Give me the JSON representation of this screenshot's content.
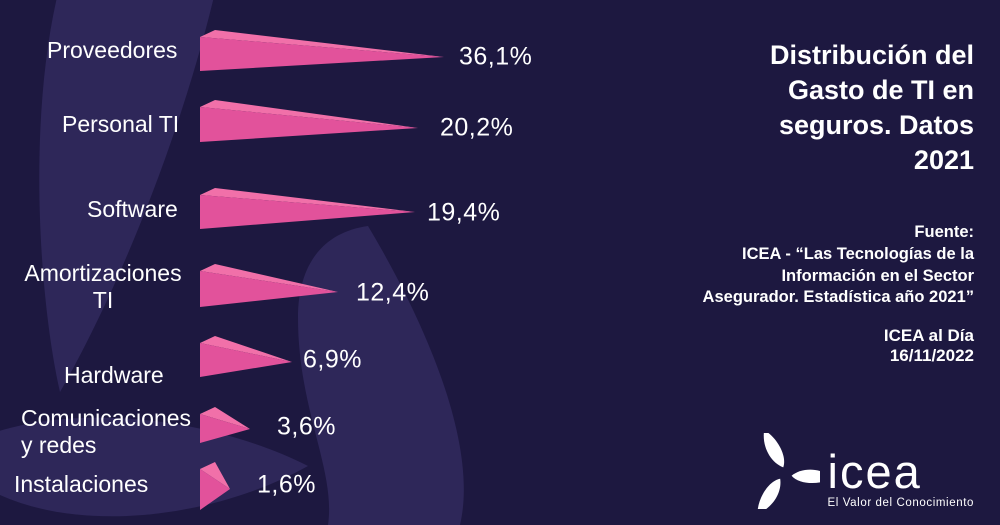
{
  "chart_data": {
    "type": "bar",
    "orientation": "horizontal",
    "title": "Distribución del Gasto de TI en seguros. Datos 2021",
    "categories": [
      "Proveedores",
      "Personal TI",
      "Software",
      "Amortizaciones TI",
      "Hardware",
      "Comunicaciones y redes",
      "Instalaciones"
    ],
    "values": [
      36.1,
      20.2,
      19.4,
      12.4,
      6.9,
      3.6,
      1.6
    ],
    "value_labels": [
      "36,1%",
      "20,2%",
      "19,4%",
      "12,4%",
      "6,9%",
      "3,6%",
      "1,6%"
    ],
    "unit": "%",
    "legend": "none",
    "grid": "off"
  },
  "rows": [
    {
      "label": "Proveedores",
      "value_label": "36,1%"
    },
    {
      "label": "Personal TI",
      "value_label": "20,2%"
    },
    {
      "label": "Software",
      "value_label": "19,4%"
    },
    {
      "label": "Amortizaciones\nTI",
      "value_label": "12,4%"
    },
    {
      "label": "Hardware",
      "value_label": "6,9%"
    },
    {
      "label": "Comunicaciones\ny redes",
      "value_label": "3,6%"
    },
    {
      "label": "Instalaciones",
      "value_label": "1,6%"
    }
  ],
  "panel": {
    "title": "Distribución del\nGasto de TI en\nseguros. Datos\n2021",
    "source_label": "Fuente:",
    "source": "ICEA - “Las Tecnologías de la\nInformación en el Sector\nAsegurador. Estadística año 2021”",
    "publication": "ICEA al Día",
    "date": "16/11/2022",
    "logo": {
      "text": "icea",
      "tagline": "El Valor del Conocimiento"
    }
  },
  "colors": {
    "background": "#1d1840",
    "watermark": "#2e2759",
    "bar": "#e2529b",
    "bar_top": "#f170a9",
    "text": "#ffffff"
  }
}
